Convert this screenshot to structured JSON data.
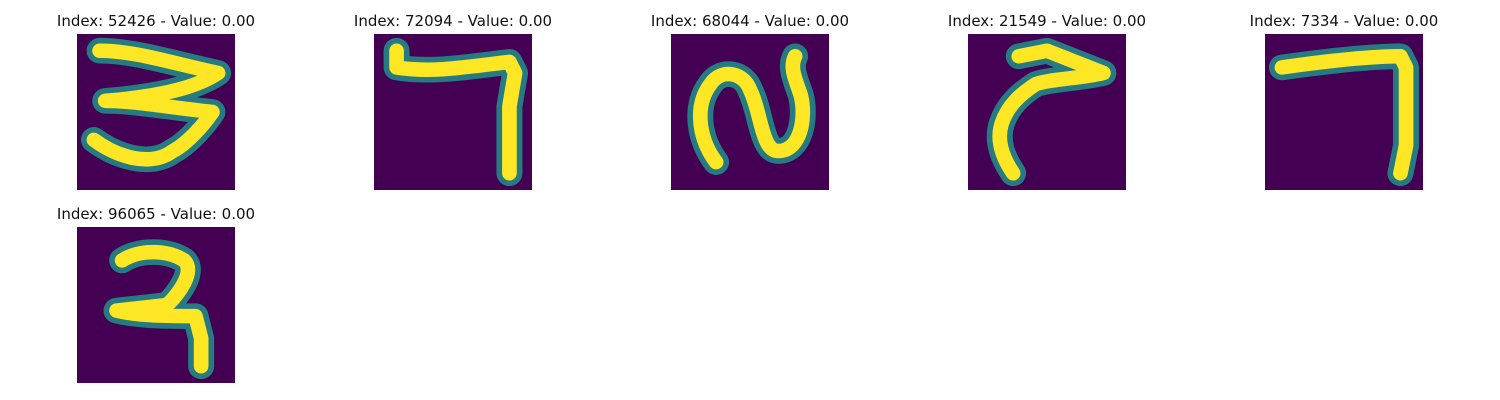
{
  "colormap": "viridis",
  "colors": {
    "background": "#440154",
    "edge": "#21918c",
    "stroke": "#fde725"
  },
  "panels": [
    {
      "title": "Index: 52426 - Value: 0.00",
      "glyph": "3"
    },
    {
      "title": "Index: 72094 - Value: 0.00",
      "glyph": "7"
    },
    {
      "title": "Index: 68044 - Value: 0.00",
      "glyph": "2"
    },
    {
      "title": "Index: 21549 - Value: 0.00",
      "glyph": "7"
    },
    {
      "title": "Index: 7334 - Value: 0.00",
      "glyph": "7"
    },
    {
      "title": "Index: 96065 - Value: 0.00",
      "glyph": "7"
    }
  ]
}
